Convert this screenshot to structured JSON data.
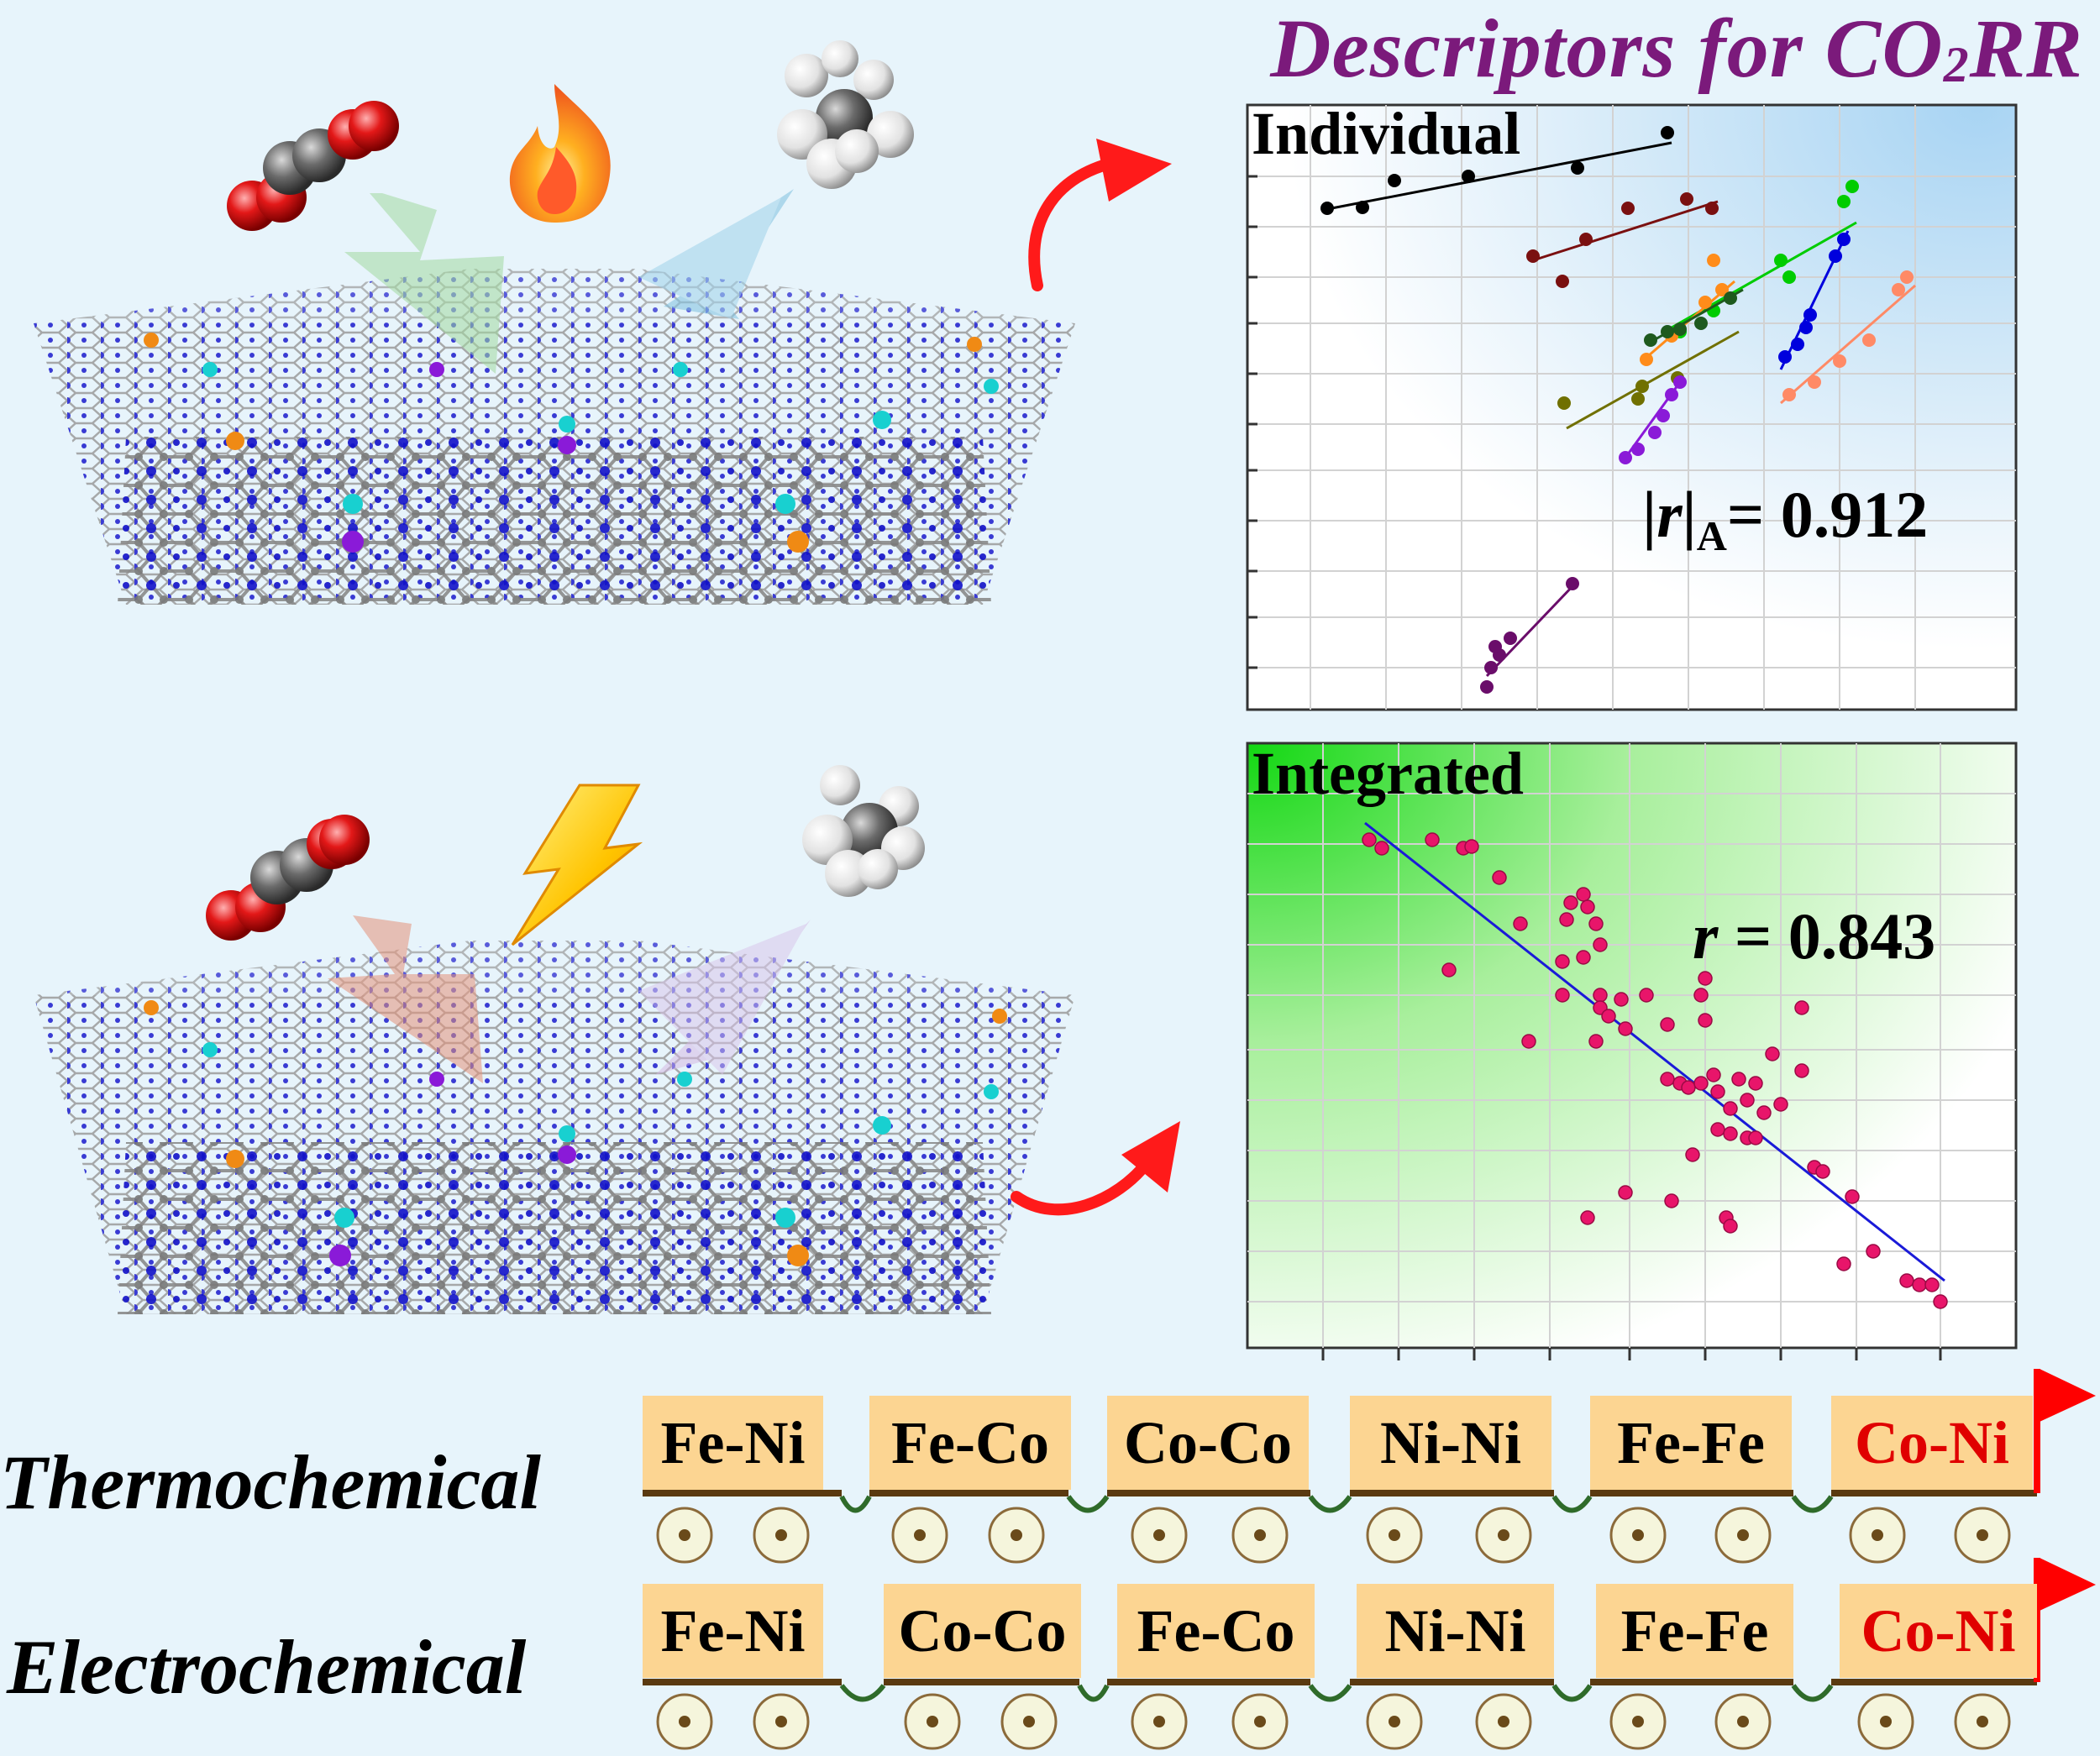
{
  "title": {
    "main": "Descriptors for CO",
    "sub": "2",
    "tail": "RR"
  },
  "panels": {
    "individual": {
      "label": "Individual",
      "stat_prefix": "|",
      "stat_r": "r",
      "stat_bar": "|",
      "stat_sub": "A",
      "stat_value": "= 0.912"
    },
    "integrated": {
      "label": "Integrated",
      "stat_r": "r",
      "stat_value": " = 0.843"
    }
  },
  "rankings": {
    "thermochemical": {
      "label": "Thermochemical",
      "pairs": [
        "Fe-Ni",
        "Fe-Co",
        "Co-Co",
        "Ni-Ni",
        "Fe-Fe",
        "Co-Ni"
      ]
    },
    "electrochemical": {
      "label": "Electrochemical",
      "pairs": [
        "Fe-Ni",
        "Co-Co",
        "Fe-Co",
        "Ni-Ni",
        "Fe-Fe",
        "Co-Ni"
      ]
    }
  },
  "colors": {
    "title": "#7b1a7b",
    "winner": "#e00000",
    "pair_box": "#fcd592",
    "flag": "#ff0000",
    "arrow": "#ff1a1a",
    "fit_line_integrated": "#1a1ad8",
    "points_integrated": "#e8156a",
    "individual_series": [
      "#000000",
      "#7a1010",
      "#00cc00",
      "#0000dd",
      "#ff8c1a",
      "#ff8a66",
      "#1e5a1e",
      "#707000",
      "#8a1ad8",
      "#6a0d6a"
    ]
  },
  "icons": [
    "co2-molecule-icon",
    "flame-icon",
    "ch4-molecule-icon",
    "lightning-icon",
    "curved-arrow-icon",
    "flag-icon",
    "wheel-icon"
  ]
}
